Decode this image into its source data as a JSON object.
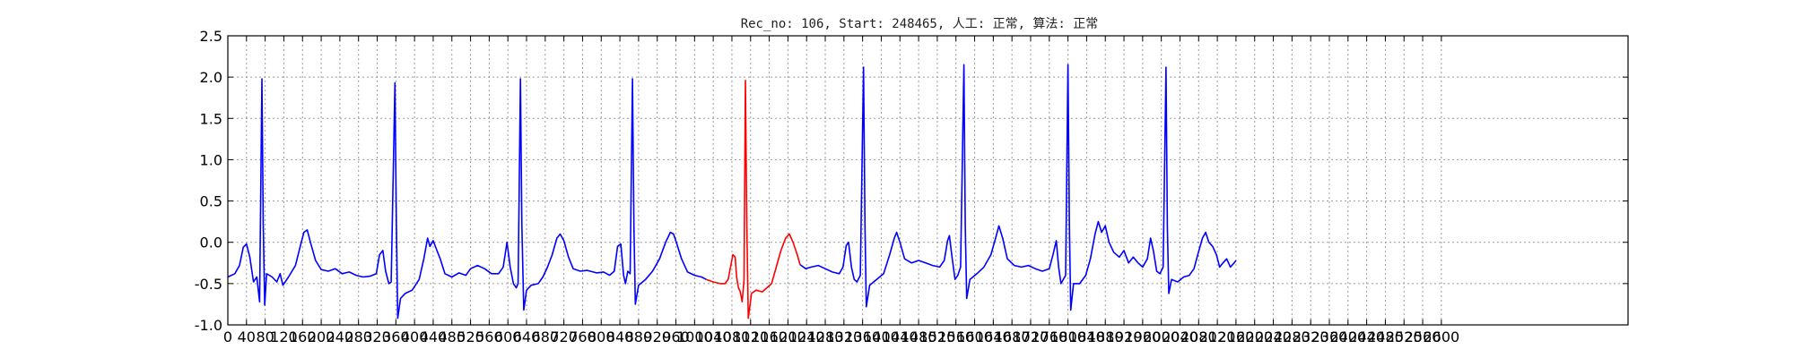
{
  "chart_data": {
    "type": "line",
    "title": "Rec_no: 106, Start: 248465, 人工: 正常, 算法: 正常",
    "xlabel": "",
    "ylabel": "",
    "xlim": [
      0,
      3000
    ],
    "ylim": [
      -1.0,
      2.5
    ],
    "grid": true,
    "y_ticks": [
      "-1.0",
      "-0.5",
      "0.0",
      "0.5",
      "1.0",
      "1.5",
      "2.0",
      "2.5"
    ],
    "x_ticks": [
      "0",
      "40",
      "80",
      "120",
      "160",
      "200",
      "240",
      "280",
      "320",
      "360",
      "400",
      "440",
      "480",
      "520",
      "560",
      "600",
      "640",
      "680",
      "720",
      "760",
      "800",
      "840",
      "880",
      "920",
      "960",
      "1000",
      "1040",
      "1080",
      "1120",
      "1160",
      "1200",
      "1240",
      "1280",
      "1320",
      "1360",
      "1400",
      "1440",
      "1480",
      "1520",
      "1560",
      "1600",
      "1640",
      "1680",
      "1720",
      "1760",
      "1800",
      "1840",
      "1880",
      "1920",
      "1960",
      "2000",
      "2040",
      "2080",
      "2120",
      "2160",
      "2200",
      "2240",
      "2280",
      "2320",
      "2360",
      "2400",
      "2440",
      "2480",
      "2520",
      "2560",
      "2600"
    ],
    "colors": {
      "signal": "#0000ff",
      "highlight": "#ff0000"
    },
    "series": [
      {
        "color": "#0000ff",
        "points": [
          [
            0,
            -0.42
          ],
          [
            15,
            -0.38
          ],
          [
            25,
            -0.28
          ],
          [
            33,
            -0.06
          ],
          [
            40,
            -0.02
          ],
          [
            47,
            -0.18
          ],
          [
            55,
            -0.48
          ],
          [
            62,
            -0.42
          ],
          [
            68,
            -0.72
          ],
          [
            73,
            1.98
          ],
          [
            76,
            0.2
          ],
          [
            79,
            -0.76
          ],
          [
            83,
            -0.38
          ],
          [
            95,
            -0.42
          ],
          [
            105,
            -0.48
          ],
          [
            112,
            -0.38
          ],
          [
            118,
            -0.52
          ],
          [
            130,
            -0.42
          ],
          [
            145,
            -0.28
          ],
          [
            155,
            -0.05
          ],
          [
            163,
            0.12
          ],
          [
            170,
            0.15
          ],
          [
            178,
            -0.02
          ],
          [
            188,
            -0.22
          ],
          [
            200,
            -0.33
          ],
          [
            215,
            -0.35
          ],
          [
            230,
            -0.32
          ],
          [
            245,
            -0.38
          ],
          [
            260,
            -0.36
          ],
          [
            275,
            -0.4
          ],
          [
            290,
            -0.42
          ],
          [
            305,
            -0.41
          ],
          [
            318,
            -0.38
          ],
          [
            325,
            -0.15
          ],
          [
            332,
            -0.1
          ],
          [
            338,
            -0.35
          ],
          [
            345,
            -0.5
          ],
          [
            350,
            -0.48
          ],
          [
            358,
            1.93
          ],
          [
            361,
            0.3
          ],
          [
            364,
            -0.92
          ],
          [
            370,
            -0.68
          ],
          [
            380,
            -0.62
          ],
          [
            395,
            -0.58
          ],
          [
            410,
            -0.45
          ],
          [
            420,
            -0.2
          ],
          [
            428,
            0.05
          ],
          [
            433,
            -0.05
          ],
          [
            440,
            0.02
          ],
          [
            448,
            -0.1
          ],
          [
            455,
            -0.2
          ],
          [
            465,
            -0.38
          ],
          [
            480,
            -0.42
          ],
          [
            495,
            -0.37
          ],
          [
            510,
            -0.4
          ],
          [
            520,
            -0.32
          ],
          [
            535,
            -0.28
          ],
          [
            550,
            -0.32
          ],
          [
            565,
            -0.38
          ],
          [
            580,
            -0.38
          ],
          [
            590,
            -0.3
          ],
          [
            598,
            0.0
          ],
          [
            605,
            -0.3
          ],
          [
            612,
            -0.5
          ],
          [
            618,
            -0.55
          ],
          [
            622,
            -0.5
          ],
          [
            627,
            1.98
          ],
          [
            630,
            0.2
          ],
          [
            634,
            -0.82
          ],
          [
            640,
            -0.58
          ],
          [
            650,
            -0.52
          ],
          [
            665,
            -0.5
          ],
          [
            675,
            -0.42
          ],
          [
            685,
            -0.3
          ],
          [
            695,
            -0.15
          ],
          [
            705,
            0.05
          ],
          [
            712,
            0.1
          ],
          [
            720,
            0.02
          ],
          [
            730,
            -0.18
          ],
          [
            740,
            -0.32
          ],
          [
            755,
            -0.35
          ],
          [
            770,
            -0.34
          ],
          [
            790,
            -0.37
          ],
          [
            805,
            -0.36
          ],
          [
            818,
            -0.4
          ],
          [
            828,
            -0.35
          ],
          [
            835,
            -0.05
          ],
          [
            842,
            -0.02
          ],
          [
            848,
            -0.4
          ],
          [
            852,
            -0.5
          ],
          [
            857,
            -0.35
          ],
          [
            862,
            -0.38
          ],
          [
            867,
            1.98
          ],
          [
            870,
            0.2
          ],
          [
            873,
            -0.75
          ],
          [
            880,
            -0.52
          ],
          [
            895,
            -0.45
          ],
          [
            910,
            -0.35
          ],
          [
            925,
            -0.2
          ],
          [
            938,
            0.0
          ],
          [
            948,
            0.12
          ],
          [
            955,
            0.1
          ],
          [
            962,
            -0.02
          ],
          [
            972,
            -0.2
          ],
          [
            985,
            -0.36
          ],
          [
            1000,
            -0.4
          ],
          [
            1015,
            -0.42
          ],
          [
            1025,
            -0.45
          ]
        ]
      },
      {
        "color": "#ff0000",
        "points": [
          [
            1025,
            -0.45
          ],
          [
            1040,
            -0.48
          ],
          [
            1055,
            -0.5
          ],
          [
            1065,
            -0.5
          ],
          [
            1072,
            -0.45
          ],
          [
            1077,
            -0.3
          ],
          [
            1082,
            -0.15
          ],
          [
            1087,
            -0.18
          ],
          [
            1090,
            -0.42
          ],
          [
            1094,
            -0.55
          ],
          [
            1098,
            -0.6
          ],
          [
            1102,
            -0.72
          ],
          [
            1106,
            -0.45
          ],
          [
            1109,
            1.96
          ],
          [
            1112,
            0.2
          ],
          [
            1115,
            -0.92
          ],
          [
            1122,
            -0.62
          ],
          [
            1132,
            -0.58
          ],
          [
            1145,
            -0.6
          ],
          [
            1155,
            -0.55
          ],
          [
            1165,
            -0.5
          ],
          [
            1175,
            -0.3
          ],
          [
            1185,
            -0.1
          ],
          [
            1195,
            0.05
          ],
          [
            1203,
            0.1
          ],
          [
            1211,
            0.0
          ],
          [
            1220,
            -0.15
          ],
          [
            1226,
            -0.27
          ]
        ]
      },
      {
        "color": "#0000ff",
        "points": [
          [
            1226,
            -0.27
          ],
          [
            1238,
            -0.32
          ],
          [
            1250,
            -0.3
          ],
          [
            1265,
            -0.28
          ],
          [
            1280,
            -0.32
          ],
          [
            1295,
            -0.36
          ],
          [
            1310,
            -0.38
          ],
          [
            1318,
            -0.3
          ],
          [
            1325,
            -0.04
          ],
          [
            1330,
            0.0
          ],
          [
            1336,
            -0.3
          ],
          [
            1342,
            -0.45
          ],
          [
            1348,
            -0.48
          ],
          [
            1355,
            -0.4
          ],
          [
            1362,
            2.12
          ],
          [
            1365,
            0.2
          ],
          [
            1368,
            -0.78
          ],
          [
            1375,
            -0.52
          ],
          [
            1390,
            -0.45
          ],
          [
            1405,
            -0.38
          ],
          [
            1418,
            -0.15
          ],
          [
            1428,
            0.05
          ],
          [
            1433,
            0.12
          ],
          [
            1440,
            0.0
          ],
          [
            1450,
            -0.2
          ],
          [
            1465,
            -0.25
          ],
          [
            1480,
            -0.22
          ],
          [
            1495,
            -0.25
          ],
          [
            1510,
            -0.28
          ],
          [
            1525,
            -0.3
          ],
          [
            1535,
            -0.22
          ],
          [
            1542,
            0.02
          ],
          [
            1546,
            0.08
          ],
          [
            1552,
            -0.2
          ],
          [
            1558,
            -0.45
          ],
          [
            1564,
            -0.4
          ],
          [
            1570,
            -0.3
          ],
          [
            1577,
            2.15
          ],
          [
            1580,
            0.2
          ],
          [
            1583,
            -0.68
          ],
          [
            1590,
            -0.45
          ],
          [
            1605,
            -0.38
          ],
          [
            1620,
            -0.3
          ],
          [
            1635,
            -0.15
          ],
          [
            1645,
            0.05
          ],
          [
            1652,
            0.2
          ],
          [
            1660,
            0.05
          ],
          [
            1670,
            -0.2
          ],
          [
            1685,
            -0.28
          ],
          [
            1700,
            -0.3
          ],
          [
            1715,
            -0.28
          ],
          [
            1730,
            -0.32
          ],
          [
            1745,
            -0.35
          ],
          [
            1760,
            -0.32
          ],
          [
            1768,
            -0.15
          ],
          [
            1775,
            0.02
          ],
          [
            1780,
            -0.3
          ],
          [
            1785,
            -0.5
          ],
          [
            1790,
            -0.45
          ],
          [
            1795,
            -0.4
          ],
          [
            1800,
            2.15
          ],
          [
            1803,
            0.2
          ],
          [
            1806,
            -0.82
          ],
          [
            1812,
            -0.5
          ],
          [
            1825,
            -0.5
          ],
          [
            1838,
            -0.4
          ],
          [
            1848,
            -0.2
          ],
          [
            1858,
            0.1
          ],
          [
            1865,
            0.25
          ],
          [
            1872,
            0.12
          ],
          [
            1880,
            0.2
          ],
          [
            1888,
            0.0
          ],
          [
            1898,
            -0.12
          ],
          [
            1910,
            -0.18
          ],
          [
            1920,
            -0.1
          ],
          [
            1930,
            -0.25
          ],
          [
            1940,
            -0.18
          ],
          [
            1950,
            -0.25
          ],
          [
            1960,
            -0.3
          ],
          [
            1970,
            -0.2
          ],
          [
            1977,
            0.05
          ],
          [
            1983,
            -0.1
          ],
          [
            1990,
            -0.35
          ],
          [
            1997,
            -0.38
          ],
          [
            2004,
            -0.3
          ],
          [
            2010,
            2.12
          ],
          [
            2013,
            0.2
          ],
          [
            2016,
            -0.62
          ],
          [
            2022,
            -0.45
          ],
          [
            2035,
            -0.48
          ],
          [
            2048,
            -0.42
          ],
          [
            2060,
            -0.4
          ],
          [
            2070,
            -0.32
          ],
          [
            2078,
            -0.15
          ],
          [
            2088,
            0.05
          ],
          [
            2095,
            0.12
          ],
          [
            2102,
            0.0
          ],
          [
            2110,
            -0.05
          ],
          [
            2118,
            -0.15
          ],
          [
            2125,
            -0.3
          ],
          [
            2132,
            -0.25
          ],
          [
            2140,
            -0.2
          ],
          [
            2148,
            -0.3
          ],
          [
            2156,
            -0.25
          ],
          [
            2160,
            -0.22
          ]
        ]
      }
    ]
  }
}
